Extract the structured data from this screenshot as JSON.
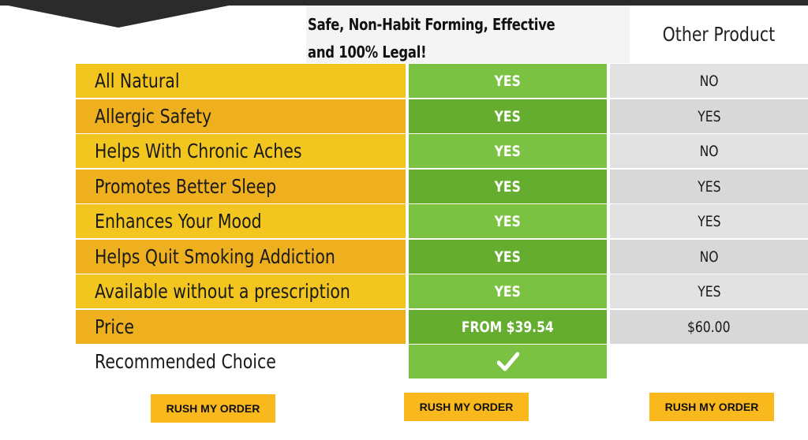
{
  "header": {
    "our_product_tagline": "Safe, Non-Habit Forming, Effective and 100% Legal!",
    "other_product": "Other Product"
  },
  "rows": [
    {
      "feature": "All Natural",
      "ours": "YES",
      "other": "NO"
    },
    {
      "feature": "Allergic Safety",
      "ours": "YES",
      "other": "YES"
    },
    {
      "feature": "Helps With Chronic Aches",
      "ours": "YES",
      "other": "NO"
    },
    {
      "feature": "Promotes Better Sleep",
      "ours": "YES",
      "other": "YES"
    },
    {
      "feature": "Enhances Your Mood",
      "ours": "YES",
      "other": "YES"
    },
    {
      "feature": "Helps Quit Smoking Addiction",
      "ours": "YES",
      "other": "NO"
    },
    {
      "feature": "Available without a prescription",
      "ours": "YES",
      "other": "YES"
    },
    {
      "feature": "Price",
      "ours": "FROM $39.54",
      "other": "$60.00"
    }
  ],
  "recommended": {
    "label": "Recommended Choice",
    "icon": "checkmark-icon"
  },
  "buttons": {
    "left": "RUSH MY ORDER",
    "middle": "RUSH MY ORDER",
    "right": "RUSH MY ORDER"
  },
  "colors": {
    "feature_yellow": "#f2c61f",
    "feature_orange": "#eeb01f",
    "ours_green_light": "#7cc242",
    "ours_green_dark": "#64ad2e",
    "other_gray": "#e2e2e2",
    "button_orange": "#f9b81b"
  }
}
